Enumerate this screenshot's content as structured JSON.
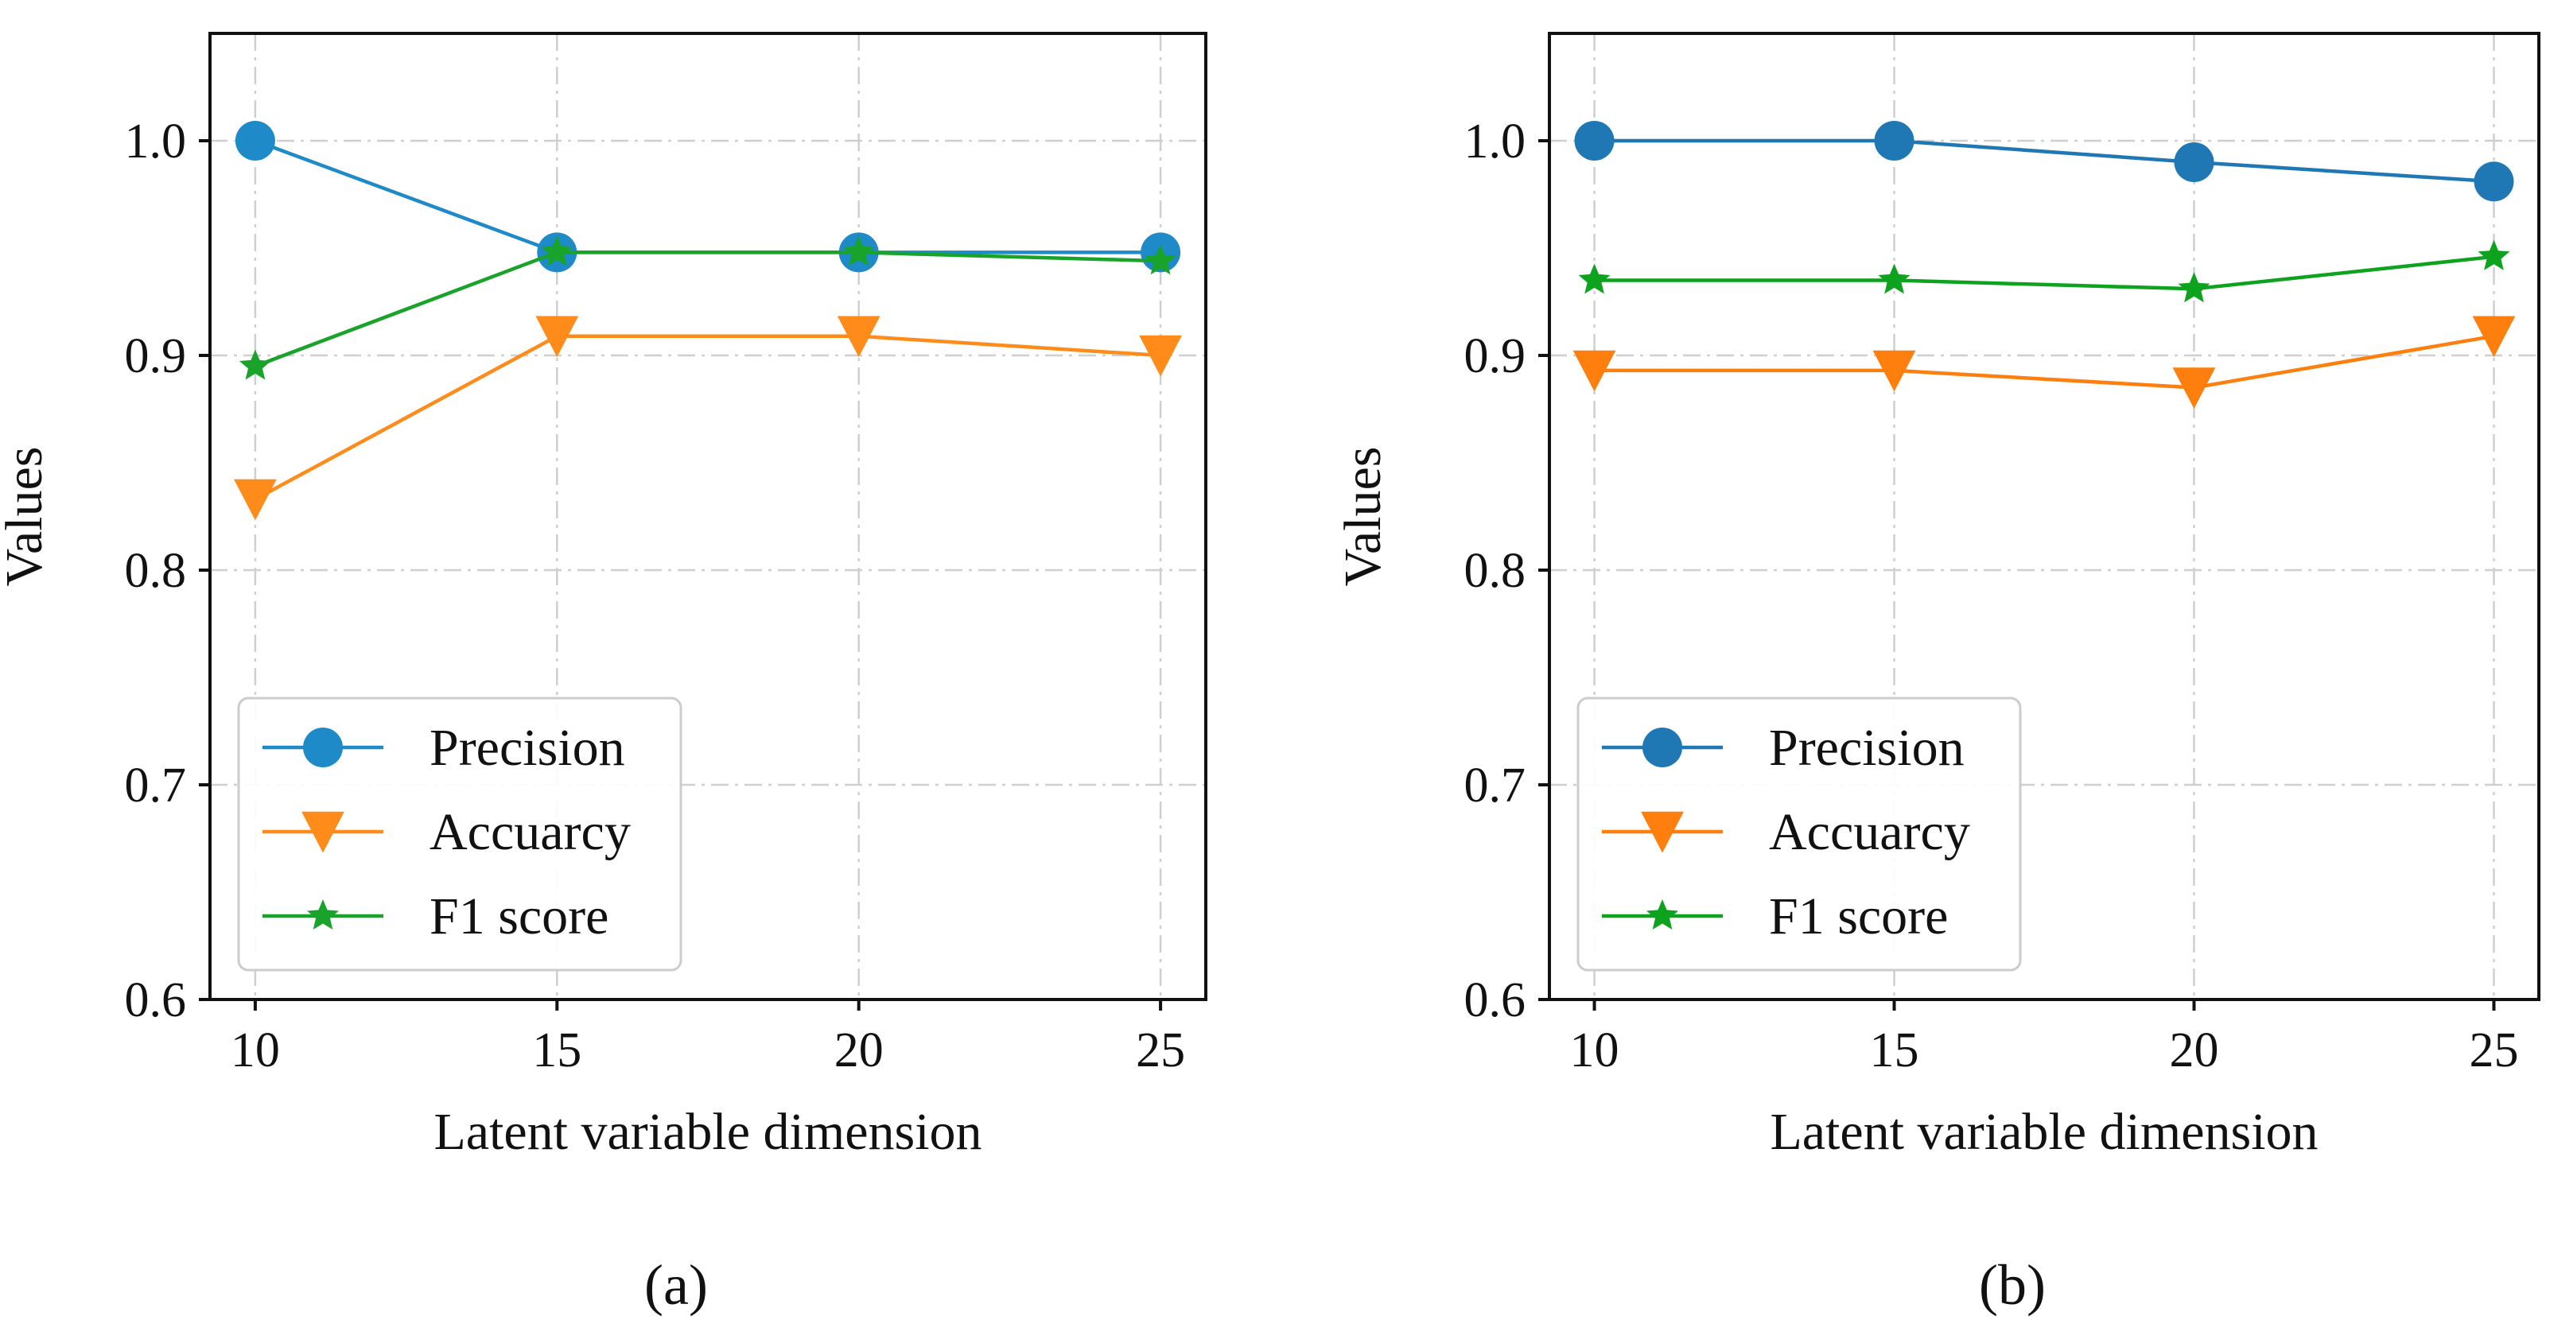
{
  "chart_data": [
    {
      "type": "line",
      "caption": "(a)",
      "x": [
        10,
        15,
        20,
        25
      ],
      "x_tick_labels": [
        "10",
        "15",
        "20",
        "25"
      ],
      "xlim": [
        9.25,
        25.75
      ],
      "ylim": [
        0.6,
        1.05
      ],
      "y_ticks": [
        0.6,
        0.7,
        0.8,
        0.9,
        1.0
      ],
      "y_tick_labels": [
        "0.6",
        "0.7",
        "0.8",
        "0.9",
        "1.0"
      ],
      "xlabel": "Latent variable dimension",
      "ylabel": "Values",
      "grid": true,
      "legend_position": "lower-left",
      "series": [
        {
          "name": "Precision",
          "marker": "circle",
          "color": "#1f8ac8",
          "values": [
            1.0,
            0.948,
            0.948,
            0.948
          ]
        },
        {
          "name": "Accuarcy",
          "marker": "triangle-down",
          "color": "#ff8c1a",
          "values": [
            0.833,
            0.909,
            0.909,
            0.9
          ]
        },
        {
          "name": "F1 score",
          "marker": "star",
          "color": "#1aa32a",
          "values": [
            0.895,
            0.948,
            0.948,
            0.944
          ]
        }
      ]
    },
    {
      "type": "line",
      "caption": "(b)",
      "x": [
        10,
        15,
        20,
        25
      ],
      "x_tick_labels": [
        "10",
        "15",
        "20",
        "25"
      ],
      "xlim": [
        9.25,
        25.75
      ],
      "ylim": [
        0.6,
        1.05
      ],
      "y_ticks": [
        0.6,
        0.7,
        0.8,
        0.9,
        1.0
      ],
      "y_tick_labels": [
        "0.6",
        "0.7",
        "0.8",
        "0.9",
        "1.0"
      ],
      "xlabel": "Latent variable dimension",
      "ylabel": "Values",
      "grid": true,
      "legend_position": "lower-left",
      "series": [
        {
          "name": "Precision",
          "marker": "circle",
          "color": "#1f77b4",
          "values": [
            1.0,
            1.0,
            0.99,
            0.981
          ]
        },
        {
          "name": "Accuarcy",
          "marker": "triangle-down",
          "color": "#ff7f0e",
          "values": [
            0.893,
            0.893,
            0.885,
            0.909
          ]
        },
        {
          "name": "F1 score",
          "marker": "star",
          "color": "#0ea31f",
          "values": [
            0.935,
            0.935,
            0.931,
            0.946
          ]
        }
      ]
    }
  ]
}
